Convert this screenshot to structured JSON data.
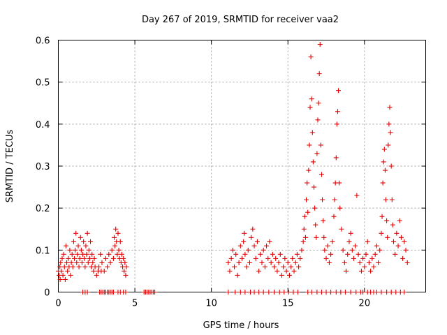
{
  "chart_data": {
    "type": "scatter",
    "title": "Day 267 of 2019, SRMTID for receiver vaa2",
    "xlabel": "GPS time / hours",
    "ylabel": "SRMTID / TECUs",
    "xlim": [
      0,
      24
    ],
    "ylim": [
      0,
      0.6
    ],
    "xticks": [
      0,
      5,
      10,
      15,
      20
    ],
    "yticks": [
      0,
      0.1,
      0.2,
      0.3,
      0.4,
      0.5,
      0.6
    ],
    "grid": true,
    "marker": "+",
    "color": "#e00000",
    "series": [
      {
        "name": "SRMTID",
        "points": [
          [
            0.0,
            0.05
          ],
          [
            0.05,
            0.04
          ],
          [
            0.1,
            0.06
          ],
          [
            0.12,
            0.03
          ],
          [
            0.15,
            0.07
          ],
          [
            0.2,
            0.05
          ],
          [
            0.25,
            0.08
          ],
          [
            0.3,
            0.04
          ],
          [
            0.35,
            0.09
          ],
          [
            0.4,
            0.06
          ],
          [
            0.45,
            0.03
          ],
          [
            0.5,
            0.11
          ],
          [
            0.55,
            0.07
          ],
          [
            0.6,
            0.05
          ],
          [
            0.65,
            0.08
          ],
          [
            0.7,
            0.06
          ],
          [
            0.75,
            0.1
          ],
          [
            0.8,
            0.04
          ],
          [
            0.85,
            0.07
          ],
          [
            0.9,
            0.09
          ],
          [
            0.95,
            0.06
          ],
          [
            1.0,
            0.12
          ],
          [
            1.05,
            0.08
          ],
          [
            1.1,
            0.1
          ],
          [
            1.15,
            0.14
          ],
          [
            1.2,
            0.07
          ],
          [
            1.25,
            0.09
          ],
          [
            1.3,
            0.11
          ],
          [
            1.35,
            0.06
          ],
          [
            1.4,
            0.08
          ],
          [
            1.45,
            0.13
          ],
          [
            1.5,
            0.1
          ],
          [
            1.55,
            0.07
          ],
          [
            1.6,
            0.09
          ],
          [
            1.65,
            0.12
          ],
          [
            1.7,
            0.08
          ],
          [
            1.75,
            0.06
          ],
          [
            1.8,
            0.11
          ],
          [
            1.85,
            0.09
          ],
          [
            1.9,
            0.14
          ],
          [
            1.95,
            0.07
          ],
          [
            2.0,
            0.1
          ],
          [
            2.05,
            0.08
          ],
          [
            2.1,
            0.12
          ],
          [
            2.15,
            0.06
          ],
          [
            2.2,
            0.09
          ],
          [
            2.25,
            0.07
          ],
          [
            2.3,
            0.05
          ],
          [
            2.35,
            0.08
          ],
          [
            2.4,
            0.06
          ],
          [
            2.5,
            0.04
          ],
          [
            2.6,
            0.05
          ],
          [
            2.65,
            0.06
          ],
          [
            2.75,
            0.09
          ],
          [
            2.8,
            0.05
          ],
          [
            2.85,
            0.07
          ],
          [
            3.0,
            0.05
          ],
          [
            3.1,
            0.08
          ],
          [
            3.2,
            0.06
          ],
          [
            3.3,
            0.09
          ],
          [
            3.4,
            0.07
          ],
          [
            3.5,
            0.1
          ],
          [
            3.6,
            0.08
          ],
          [
            3.65,
            0.13
          ],
          [
            3.7,
            0.11
          ],
          [
            3.75,
            0.15
          ],
          [
            3.8,
            0.12
          ],
          [
            3.85,
            0.09
          ],
          [
            3.9,
            0.14
          ],
          [
            3.95,
            0.1
          ],
          [
            4.0,
            0.08
          ],
          [
            4.05,
            0.12
          ],
          [
            4.1,
            0.07
          ],
          [
            4.15,
            0.09
          ],
          [
            4.2,
            0.06
          ],
          [
            4.25,
            0.08
          ],
          [
            4.3,
            0.05
          ],
          [
            4.35,
            0.07
          ],
          [
            4.4,
            0.04
          ],
          [
            4.45,
            0.06
          ],
          [
            11.1,
            0.07
          ],
          [
            11.2,
            0.05
          ],
          [
            11.3,
            0.08
          ],
          [
            11.4,
            0.1
          ],
          [
            11.5,
            0.06
          ],
          [
            11.6,
            0.09
          ],
          [
            11.7,
            0.04
          ],
          [
            11.8,
            0.07
          ],
          [
            11.9,
            0.11
          ],
          [
            12.0,
            0.08
          ],
          [
            12.1,
            0.12
          ],
          [
            12.15,
            0.14
          ],
          [
            12.2,
            0.09
          ],
          [
            12.3,
            0.06
          ],
          [
            12.4,
            0.1
          ],
          [
            12.5,
            0.07
          ],
          [
            12.6,
            0.13
          ],
          [
            12.7,
            0.15
          ],
          [
            12.8,
            0.11
          ],
          [
            12.9,
            0.08
          ],
          [
            13.0,
            0.12
          ],
          [
            13.1,
            0.05
          ],
          [
            13.2,
            0.09
          ],
          [
            13.3,
            0.07
          ],
          [
            13.4,
            0.1
          ],
          [
            13.5,
            0.06
          ],
          [
            13.6,
            0.11
          ],
          [
            13.7,
            0.08
          ],
          [
            13.8,
            0.12
          ],
          [
            13.9,
            0.07
          ],
          [
            14.0,
            0.09
          ],
          [
            14.1,
            0.06
          ],
          [
            14.2,
            0.08
          ],
          [
            14.3,
            0.05
          ],
          [
            14.4,
            0.07
          ],
          [
            14.5,
            0.09
          ],
          [
            14.6,
            0.04
          ],
          [
            14.7,
            0.06
          ],
          [
            14.8,
            0.08
          ],
          [
            14.9,
            0.05
          ],
          [
            15.0,
            0.07
          ],
          [
            15.1,
            0.04
          ],
          [
            15.2,
            0.06
          ],
          [
            15.3,
            0.08
          ],
          [
            15.4,
            0.05
          ],
          [
            15.5,
            0.07
          ],
          [
            15.6,
            0.09
          ],
          [
            15.7,
            0.06
          ],
          [
            15.8,
            0.08
          ],
          [
            15.9,
            0.1
          ],
          [
            16.0,
            0.12
          ],
          [
            16.05,
            0.15
          ],
          [
            16.1,
            0.18
          ],
          [
            16.15,
            0.13
          ],
          [
            16.2,
            0.22
          ],
          [
            16.25,
            0.26
          ],
          [
            16.3,
            0.19
          ],
          [
            16.35,
            0.29
          ],
          [
            16.4,
            0.35
          ],
          [
            16.45,
            0.44
          ],
          [
            16.5,
            0.56
          ],
          [
            16.55,
            0.46
          ],
          [
            16.6,
            0.38
          ],
          [
            16.65,
            0.31
          ],
          [
            16.7,
            0.25
          ],
          [
            16.75,
            0.2
          ],
          [
            16.8,
            0.16
          ],
          [
            16.85,
            0.13
          ],
          [
            16.9,
            0.33
          ],
          [
            16.95,
            0.41
          ],
          [
            17.0,
            0.45
          ],
          [
            17.05,
            0.52
          ],
          [
            17.1,
            0.59
          ],
          [
            17.15,
            0.35
          ],
          [
            17.2,
            0.28
          ],
          [
            17.25,
            0.22
          ],
          [
            17.3,
            0.17
          ],
          [
            17.35,
            0.13
          ],
          [
            17.4,
            0.1
          ],
          [
            17.5,
            0.08
          ],
          [
            17.6,
            0.11
          ],
          [
            17.7,
            0.07
          ],
          [
            17.8,
            0.09
          ],
          [
            17.9,
            0.12
          ],
          [
            18.0,
            0.18
          ],
          [
            18.05,
            0.22
          ],
          [
            18.1,
            0.26
          ],
          [
            18.15,
            0.32
          ],
          [
            18.2,
            0.4
          ],
          [
            18.25,
            0.43
          ],
          [
            18.3,
            0.48
          ],
          [
            18.35,
            0.26
          ],
          [
            18.4,
            0.2
          ],
          [
            18.5,
            0.15
          ],
          [
            18.6,
            0.1
          ],
          [
            18.7,
            0.07
          ],
          [
            18.8,
            0.05
          ],
          [
            18.9,
            0.09
          ],
          [
            19.0,
            0.12
          ],
          [
            19.1,
            0.14
          ],
          [
            19.2,
            0.1
          ],
          [
            19.3,
            0.08
          ],
          [
            19.4,
            0.11
          ],
          [
            19.5,
            0.23
          ],
          [
            19.6,
            0.09
          ],
          [
            19.7,
            0.07
          ],
          [
            19.8,
            0.05
          ],
          [
            19.9,
            0.08
          ],
          [
            20.0,
            0.06
          ],
          [
            20.1,
            0.09
          ],
          [
            20.2,
            0.12
          ],
          [
            20.3,
            0.07
          ],
          [
            20.4,
            0.05
          ],
          [
            20.5,
            0.08
          ],
          [
            20.6,
            0.06
          ],
          [
            20.7,
            0.09
          ],
          [
            20.8,
            0.11
          ],
          [
            20.9,
            0.07
          ],
          [
            21.0,
            0.1
          ],
          [
            21.1,
            0.14
          ],
          [
            21.15,
            0.18
          ],
          [
            21.2,
            0.26
          ],
          [
            21.25,
            0.31
          ],
          [
            21.3,
            0.34
          ],
          [
            21.35,
            0.29
          ],
          [
            21.4,
            0.22
          ],
          [
            21.45,
            0.17
          ],
          [
            21.5,
            0.13
          ],
          [
            21.55,
            0.35
          ],
          [
            21.6,
            0.4
          ],
          [
            21.65,
            0.44
          ],
          [
            21.7,
            0.38
          ],
          [
            21.75,
            0.3
          ],
          [
            21.8,
            0.22
          ],
          [
            21.85,
            0.16
          ],
          [
            21.9,
            0.12
          ],
          [
            22.0,
            0.09
          ],
          [
            22.1,
            0.14
          ],
          [
            22.2,
            0.11
          ],
          [
            22.3,
            0.17
          ],
          [
            22.4,
            0.13
          ],
          [
            22.5,
            0.08
          ],
          [
            22.6,
            0.12
          ],
          [
            22.7,
            0.1
          ],
          [
            22.8,
            0.07
          ]
        ],
        "zero_points": [
          1.6,
          1.75,
          1.9,
          2.7,
          2.8,
          2.9,
          3.0,
          3.1,
          3.2,
          3.3,
          3.4,
          3.5,
          3.6,
          3.9,
          4.05,
          4.25,
          4.4,
          5.6,
          5.7,
          5.8,
          5.9,
          6.0,
          6.1,
          6.2,
          6.3,
          11.1,
          11.55,
          11.9,
          12.2,
          12.55,
          12.8,
          13.1,
          13.4,
          13.75,
          14.1,
          14.45,
          14.75,
          15.05,
          15.35,
          15.65,
          16.3,
          16.55,
          16.9,
          17.2,
          17.5,
          17.8,
          18.15,
          18.45,
          18.75,
          19.1,
          19.45,
          19.75,
          19.9,
          20.2,
          20.4,
          20.6,
          20.8,
          21.1,
          21.45,
          21.75,
          22.05,
          22.35,
          22.6
        ]
      }
    ]
  }
}
